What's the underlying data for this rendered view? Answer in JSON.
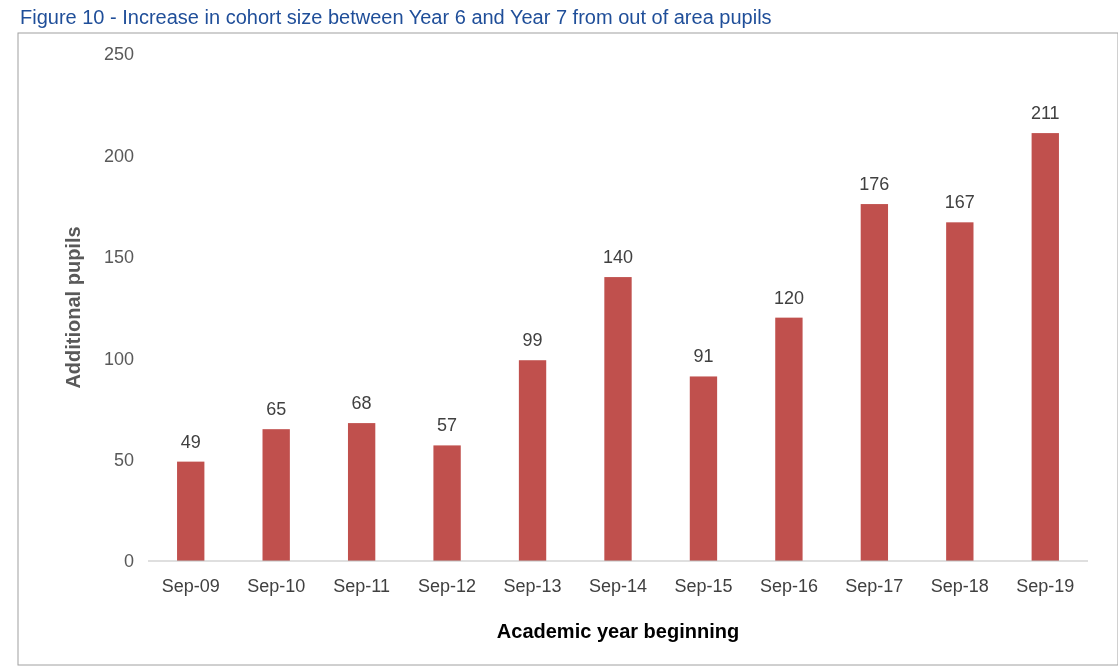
{
  "chart_data": {
    "type": "bar",
    "title": "Figure 10 - Increase in cohort size between Year 6 and Year 7 from out of area pupils",
    "xlabel": "Academic year beginning",
    "ylabel": "Additional pupils",
    "categories": [
      "Sep-09",
      "Sep-10",
      "Sep-11",
      "Sep-12",
      "Sep-13",
      "Sep-14",
      "Sep-15",
      "Sep-16",
      "Sep-17",
      "Sep-18",
      "Sep-19"
    ],
    "values": [
      49,
      65,
      68,
      57,
      99,
      140,
      91,
      120,
      176,
      167,
      211
    ],
    "color": "#c0504d",
    "ylim": [
      0,
      250
    ],
    "yticks": [
      0,
      50,
      100,
      150,
      200,
      250
    ],
    "grid": false,
    "data_labels": true
  }
}
